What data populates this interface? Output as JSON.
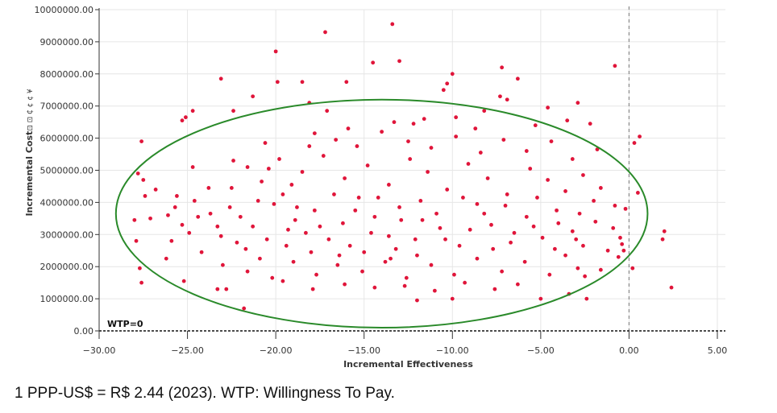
{
  "chart_data": {
    "type": "scatter",
    "xlabel": "Incremental Effectiveness",
    "ylabel": "Incremental Cost",
    "ylabel_suffix": "⊡ ⊡ ₵ ¢ ¢ ¥",
    "xlim": [
      -30,
      5
    ],
    "ylim": [
      0,
      10000000
    ],
    "x_ticks": [
      -30,
      -25,
      -20,
      -15,
      -10,
      -5,
      0,
      5
    ],
    "x_tick_labels": [
      "−30.00",
      "−25.00",
      "−20.00",
      "−15.00",
      "−10.00",
      "−5.00",
      "0.00",
      "5.00"
    ],
    "y_ticks": [
      0,
      1000000,
      2000000,
      3000000,
      4000000,
      5000000,
      6000000,
      7000000,
      8000000,
      9000000,
      10000000
    ],
    "y_tick_labels": [
      "0.00",
      "1000000.00",
      "2000000.00",
      "3000000.00",
      "4000000.00",
      "5000000.00",
      "6000000.00",
      "7000000.00",
      "8000000.00",
      "9000000.00",
      "10000000.00"
    ],
    "grid": true,
    "point_color": "#e0153a",
    "ellipse_color": "#2a8a2a",
    "reference_line_color": "#888888",
    "wtp_line_color": "#111111",
    "wtp_label": "WTP=0",
    "ellipse": {
      "center_x": -14.0,
      "center_y": 3650000,
      "semi_axis_x": 15.05,
      "semi_axis_y": 3550000
    },
    "reference_line_x": 0,
    "wtp_line_y": 0,
    "points": [
      [
        -13.4,
        9550000
      ],
      [
        -17.2,
        9300000
      ],
      [
        -20.0,
        8700000
      ],
      [
        -13.0,
        8400000
      ],
      [
        -14.5,
        8350000
      ],
      [
        -0.8,
        8250000
      ],
      [
        -7.2,
        8200000
      ],
      [
        -10.0,
        8000000
      ],
      [
        -6.3,
        7850000
      ],
      [
        -23.1,
        7850000
      ],
      [
        -19.9,
        7750000
      ],
      [
        -18.5,
        7750000
      ],
      [
        -16.0,
        7750000
      ],
      [
        -10.3,
        7700000
      ],
      [
        -10.5,
        7500000
      ],
      [
        -21.3,
        7300000
      ],
      [
        -18.1,
        7100000
      ],
      [
        -7.3,
        7300000
      ],
      [
        -6.9,
        7200000
      ],
      [
        -2.9,
        7100000
      ],
      [
        -4.6,
        6950000
      ],
      [
        -24.7,
        6850000
      ],
      [
        -22.4,
        6850000
      ],
      [
        -17.1,
        6850000
      ],
      [
        -8.2,
        6850000
      ],
      [
        -25.1,
        6650000
      ],
      [
        -25.3,
        6550000
      ],
      [
        -3.5,
        6550000
      ],
      [
        -2.2,
        6450000
      ],
      [
        -5.3,
        6400000
      ],
      [
        0.6,
        6050000
      ],
      [
        0.3,
        5850000
      ],
      [
        -27.6,
        5900000
      ],
      [
        -1.8,
        5650000
      ],
      [
        -13.3,
        6500000
      ],
      [
        -12.2,
        6450000
      ],
      [
        -11.6,
        6600000
      ],
      [
        -9.8,
        6650000
      ],
      [
        -8.7,
        6300000
      ],
      [
        -15.9,
        6300000
      ],
      [
        -24.7,
        5100000
      ],
      [
        -22.4,
        5300000
      ],
      [
        -20.6,
        5850000
      ],
      [
        -25.6,
        4200000
      ],
      [
        -27.8,
        4900000
      ],
      [
        -27.5,
        4700000
      ],
      [
        -26.8,
        4400000
      ],
      [
        -27.1,
        3500000
      ],
      [
        -28.0,
        3450000
      ],
      [
        -27.4,
        4200000
      ],
      [
        -26.1,
        3600000
      ],
      [
        -25.3,
        3300000
      ],
      [
        -25.9,
        2800000
      ],
      [
        -25.2,
        1550000
      ],
      [
        -27.9,
        2800000
      ],
      [
        -27.7,
        1950000
      ],
      [
        -27.6,
        1500000
      ],
      [
        -21.8,
        700000
      ],
      [
        -22.8,
        1300000
      ],
      [
        -23.3,
        1300000
      ],
      [
        -12.0,
        950000
      ],
      [
        -10.0,
        1000000
      ],
      [
        -5.0,
        1000000
      ],
      [
        -3.4,
        1150000
      ],
      [
        -2.4,
        1000000
      ],
      [
        -2.5,
        1700000
      ],
      [
        -1.6,
        1900000
      ],
      [
        -0.9,
        3200000
      ],
      [
        -0.5,
        2900000
      ],
      [
        -0.3,
        2500000
      ],
      [
        0.2,
        1950000
      ],
      [
        0.5,
        4300000
      ],
      [
        2.0,
        3100000
      ],
      [
        1.9,
        2850000
      ],
      [
        2.4,
        1350000
      ],
      [
        -0.8,
        3900000
      ],
      [
        -0.2,
        3800000
      ],
      [
        -0.4,
        2700000
      ],
      [
        -0.6,
        2300000
      ],
      [
        -1.2,
        2500000
      ],
      [
        -18.3,
        3050000
      ],
      [
        -20.5,
        2850000
      ],
      [
        -21.7,
        2550000
      ],
      [
        -23.1,
        2950000
      ],
      [
        -22.6,
        3850000
      ],
      [
        -23.8,
        4450000
      ],
      [
        -21.6,
        5100000
      ],
      [
        -19.8,
        5350000
      ],
      [
        -19.1,
        4550000
      ],
      [
        -17.8,
        3750000
      ],
      [
        -16.2,
        3350000
      ],
      [
        -15.3,
        4150000
      ],
      [
        -14.4,
        3550000
      ],
      [
        -13.6,
        2950000
      ],
      [
        -12.9,
        3450000
      ],
      [
        -11.8,
        4050000
      ],
      [
        -10.7,
        3200000
      ],
      [
        -9.6,
        2650000
      ],
      [
        -8.6,
        3950000
      ],
      [
        -7.8,
        3300000
      ],
      [
        -6.7,
        2750000
      ],
      [
        -5.8,
        3550000
      ],
      [
        -4.9,
        2900000
      ],
      [
        -4.1,
        3750000
      ],
      [
        -3.2,
        3100000
      ],
      [
        -2.6,
        2650000
      ],
      [
        -1.9,
        3400000
      ],
      [
        -3.6,
        4350000
      ],
      [
        -4.6,
        4700000
      ],
      [
        -5.6,
        5050000
      ],
      [
        -6.9,
        4250000
      ],
      [
        -8.0,
        4750000
      ],
      [
        -9.1,
        5200000
      ],
      [
        -10.3,
        4400000
      ],
      [
        -11.4,
        4950000
      ],
      [
        -12.4,
        5350000
      ],
      [
        -13.6,
        4550000
      ],
      [
        -14.8,
        5150000
      ],
      [
        -16.1,
        4750000
      ],
      [
        -17.3,
        5450000
      ],
      [
        -18.5,
        4950000
      ],
      [
        -19.6,
        4250000
      ],
      [
        -20.8,
        4650000
      ],
      [
        -22.0,
        3550000
      ],
      [
        -23.3,
        3250000
      ],
      [
        -24.4,
        3550000
      ],
      [
        -24.2,
        2450000
      ],
      [
        -23.0,
        2050000
      ],
      [
        -21.6,
        1850000
      ],
      [
        -20.2,
        1650000
      ],
      [
        -19.0,
        2150000
      ],
      [
        -17.7,
        1750000
      ],
      [
        -16.4,
        2350000
      ],
      [
        -15.1,
        1850000
      ],
      [
        -13.8,
        2150000
      ],
      [
        -12.6,
        1650000
      ],
      [
        -11.2,
        2050000
      ],
      [
        -9.9,
        1750000
      ],
      [
        -8.6,
        2250000
      ],
      [
        -7.2,
        1850000
      ],
      [
        -5.9,
        2150000
      ],
      [
        -4.5,
        1750000
      ],
      [
        -3.6,
        2350000
      ],
      [
        -2.9,
        1950000
      ],
      [
        -6.3,
        1450000
      ],
      [
        -7.6,
        1300000
      ],
      [
        -9.3,
        1500000
      ],
      [
        -11.0,
        1250000
      ],
      [
        -12.7,
        1400000
      ],
      [
        -14.4,
        1350000
      ],
      [
        -16.1,
        1450000
      ],
      [
        -17.9,
        1300000
      ],
      [
        -19.6,
        1550000
      ],
      [
        -14.0,
        6200000
      ],
      [
        -15.4,
        5750000
      ],
      [
        -16.6,
        5950000
      ],
      [
        -17.8,
        6150000
      ],
      [
        -12.5,
        5900000
      ],
      [
        -11.2,
        5700000
      ],
      [
        -9.8,
        6050000
      ],
      [
        -8.4,
        5550000
      ],
      [
        -7.1,
        5950000
      ],
      [
        -5.8,
        5600000
      ],
      [
        -4.4,
        5900000
      ],
      [
        -3.2,
        5350000
      ],
      [
        -2.6,
        4850000
      ],
      [
        -1.6,
        4450000
      ],
      [
        -2.0,
        4050000
      ],
      [
        -2.8,
        3650000
      ],
      [
        -18.9,
        3450000
      ],
      [
        -20.1,
        3950000
      ],
      [
        -21.3,
        3250000
      ],
      [
        -22.5,
        4450000
      ],
      [
        -15.8,
        2650000
      ],
      [
        -14.6,
        3050000
      ],
      [
        -13.2,
        2550000
      ],
      [
        -12.1,
        2850000
      ],
      [
        -10.9,
        3650000
      ],
      [
        -9.4,
        4150000
      ],
      [
        -8.2,
        3650000
      ],
      [
        -7.0,
        3900000
      ],
      [
        -5.4,
        3250000
      ],
      [
        -4.2,
        2550000
      ],
      [
        -3.0,
        2850000
      ],
      [
        -17.0,
        2850000
      ],
      [
        -18.0,
        2450000
      ],
      [
        -19.4,
        2650000
      ],
      [
        -20.9,
        2250000
      ],
      [
        -22.2,
        2750000
      ],
      [
        -23.7,
        3650000
      ],
      [
        -24.9,
        3050000
      ],
      [
        -26.2,
        2250000
      ],
      [
        -25.7,
        3850000
      ],
      [
        -24.6,
        4050000
      ],
      [
        -16.7,
        4250000
      ],
      [
        -15.5,
        3750000
      ],
      [
        -14.2,
        4150000
      ],
      [
        -13.0,
        3850000
      ],
      [
        -11.7,
        3450000
      ],
      [
        -10.4,
        2850000
      ],
      [
        -9.0,
        3150000
      ],
      [
        -7.7,
        2550000
      ],
      [
        -6.5,
        3050000
      ],
      [
        -5.2,
        4150000
      ],
      [
        -4.0,
        3350000
      ],
      [
        -12.0,
        2350000
      ],
      [
        -13.5,
        2250000
      ],
      [
        -15.0,
        2450000
      ],
      [
        -16.5,
        2050000
      ],
      [
        -17.5,
        3250000
      ],
      [
        -18.8,
        3850000
      ],
      [
        -19.3,
        3150000
      ],
      [
        -21.0,
        4050000
      ],
      [
        -20.4,
        5050000
      ],
      [
        -18.1,
        5750000
      ]
    ]
  },
  "footnote": "1 PPP-US$ = R$ 2.44 (2023). WTP: Willingness To Pay."
}
